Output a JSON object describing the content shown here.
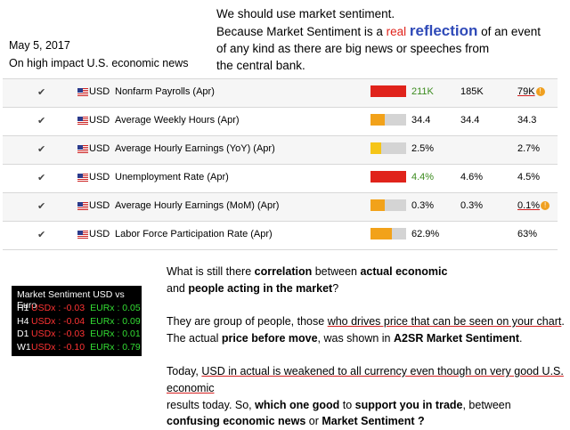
{
  "header": {
    "date": "May 5, 2017",
    "subtitle": "On high impact U.S. economic news"
  },
  "intro": {
    "line1": "We should use market sentiment.",
    "line2_pre": "Because Market Sentiment is a ",
    "line2_real": "real",
    "line2_reflection": "reflection",
    "line2_post": " of an event",
    "line3": "of any kind as there are big news or speeches from",
    "line4": "the central bank."
  },
  "news_table": {
    "rows": [
      {
        "check": "✔",
        "currency": "USD",
        "event": "Nonfarm Payrolls (Apr)",
        "impact": 1.0,
        "impact_color": "#e0231b",
        "actual": "211K",
        "forecast": "185K",
        "previous": "79K"
      },
      {
        "check": "✔",
        "currency": "USD",
        "event": "Average Weekly Hours (Apr)",
        "impact": 0.4,
        "impact_color": "#f2a21a",
        "actual": "34.4",
        "forecast": "34.4",
        "previous": "34.3"
      },
      {
        "check": "✔",
        "currency": "USD",
        "event": "Average Hourly Earnings (YoY) (Apr)",
        "impact": 0.3,
        "impact_color": "#f5c518",
        "actual": "2.5%",
        "forecast": "",
        "previous": "2.7%"
      },
      {
        "check": "✔",
        "currency": "USD",
        "event": "Unemployment Rate (Apr)",
        "impact": 1.0,
        "impact_color": "#e0231b",
        "actual": "4.4%",
        "forecast": "4.6%",
        "previous": "4.5%"
      },
      {
        "check": "✔",
        "currency": "USD",
        "event": "Average Hourly Earnings (MoM) (Apr)",
        "impact": 0.4,
        "impact_color": "#f2a21a",
        "actual": "0.3%",
        "forecast": "0.3%",
        "previous": "0.1%"
      },
      {
        "check": "✔",
        "currency": "USD",
        "event": "Labor Force Participation Rate (Apr)",
        "impact": 0.6,
        "impact_color": "#f2a21a",
        "actual": "62.9%",
        "forecast": "",
        "previous": "63%"
      }
    ]
  },
  "sentiment": {
    "title": "Market Sentiment USD vs Euro",
    "rows": [
      {
        "tf": "H1",
        "usd": "USDx : -0.03",
        "eur": "EURx : 0.05"
      },
      {
        "tf": "H4",
        "usd": "USDx : -0.04",
        "eur": "EURx : 0.09"
      },
      {
        "tf": "D1",
        "usd": "USDx : -0.03",
        "eur": "EURx : 0.01"
      },
      {
        "tf": "W1",
        "usd": "USDx : -0.10",
        "eur": "EURx : 0.79"
      }
    ]
  },
  "body": {
    "p1a": "What is still there ",
    "p1b": "correlation",
    "p1c": " between ",
    "p1d": "actual economic",
    "p1e": "and ",
    "p1f": "people acting in the market",
    "p1g": "?",
    "p2a": "They are group of people, those ",
    "p2b": "who drives price that can be seen on your chart",
    "p2c": ".",
    "p2d": "The actual ",
    "p2e": "price before move",
    "p2f": ", was shown in ",
    "p2g": "A2SR Market Sentiment",
    "p2h": ".",
    "p3a": "Today, ",
    "p3b": "USD in actual is weakened to all currency even though on very good U.S. economic",
    "p3c": "results today. So, ",
    "p3d": "which one good",
    "p3e": " to ",
    "p3f": "support you in trade",
    "p3g": ", between",
    "p3h": "confusing economic news",
    "p3i": " or ",
    "p3j": "Market Sentiment ?"
  }
}
